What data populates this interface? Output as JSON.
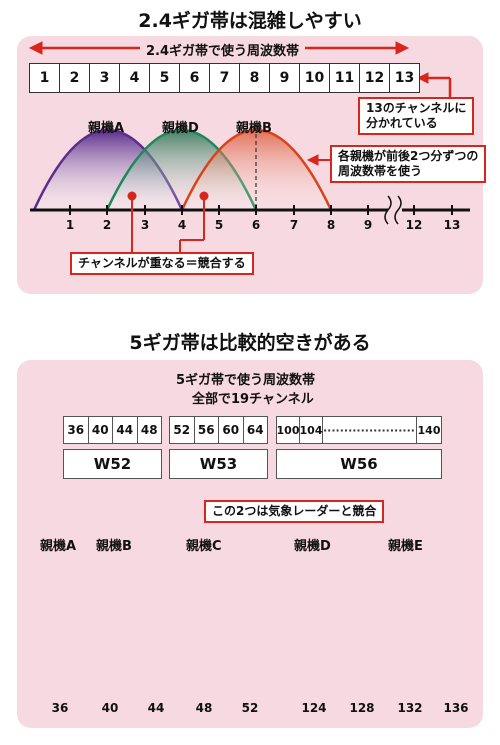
{
  "section1": {
    "title": "2.4ギガ帯は混雑しやすい",
    "band_label": "2.4ギガ帯で使う周波数帯",
    "channels": [
      "1",
      "2",
      "3",
      "4",
      "5",
      "6",
      "7",
      "8",
      "9",
      "10",
      "11",
      "12",
      "13"
    ],
    "callout_13": "13のチャンネルに\n分かれている",
    "callout_each": "各親機が前後2つ分ずつの\n周波数帯を使う",
    "callout_overlap": "チャンネルが重なる＝競合する",
    "routers": [
      {
        "name": "親機A",
        "color": "#5b2d8c"
      },
      {
        "name": "親機D",
        "color": "#1a8a5a"
      },
      {
        "name": "親機B",
        "color": "#d9431c"
      }
    ],
    "axis_ticks": [
      "1",
      "2",
      "3",
      "4",
      "5",
      "6",
      "7",
      "8",
      "9",
      "12",
      "13"
    ]
  },
  "section2": {
    "title": "5ギガ帯は比較的空きがある",
    "band_label": "5ギガ帯で使う周波数帯",
    "total_label": "全部で19チャンネル",
    "w52_channels": [
      "36",
      "40",
      "44",
      "48"
    ],
    "w53_channels": [
      "52",
      "56",
      "60",
      "64"
    ],
    "w56_channels": [
      "100",
      "104",
      "140"
    ],
    "w56_dots": "··························",
    "groups": [
      "W52",
      "W53",
      "W56"
    ],
    "radar_callout": "この2つは気象レーダーと競合",
    "routers": [
      {
        "name": "親機A",
        "color": "#5b2d8c"
      },
      {
        "name": "親機B",
        "color": "#d9263c"
      },
      {
        "name": "親機C",
        "color": "#f08a1c"
      },
      {
        "name": "親機D",
        "color": "#1a8a5a"
      },
      {
        "name": "親機E",
        "color": "#9a6a3a"
      }
    ],
    "axis_ticks": [
      "36",
      "40",
      "44",
      "48",
      "52",
      "124",
      "128",
      "132",
      "136"
    ]
  },
  "colors": {
    "accent_red": "#d9261c",
    "panel_pink": "#f6d9e1"
  }
}
